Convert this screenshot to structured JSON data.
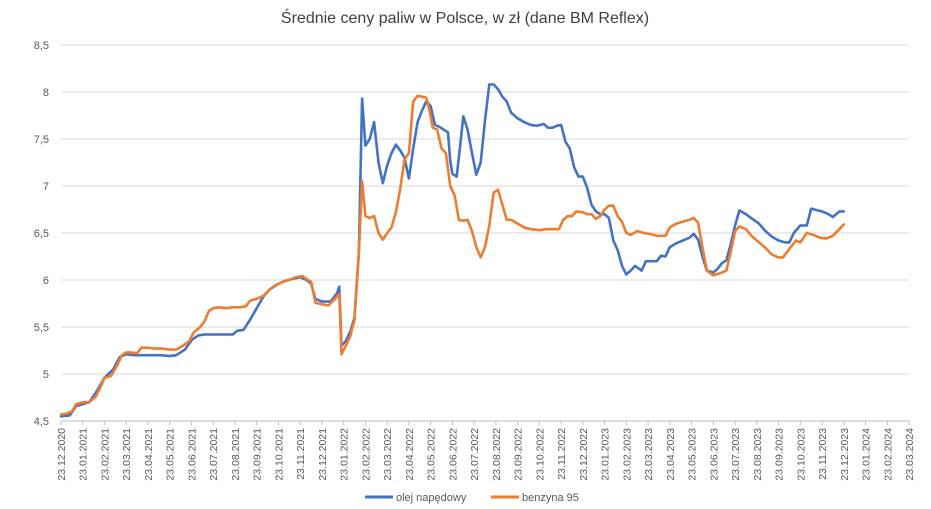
{
  "chart_data": {
    "type": "line",
    "title": "Średnie ceny paliw w Polsce, w zł (dane BM Reflex)",
    "xlabel": "",
    "ylabel": "",
    "ylim": [
      4.5,
      8.5
    ],
    "yticks": [
      "4,5",
      "5",
      "5,5",
      "6",
      "6,5",
      "7",
      "7,5",
      "8",
      "8,5"
    ],
    "grid": true,
    "legend": "bottom",
    "categories": [
      "23.12.2020",
      "23.01.2021",
      "23.02.2021",
      "23.03.2021",
      "23.04.2021",
      "23.05.2021",
      "23.06.2021",
      "23.07.2021",
      "23.08.2021",
      "23.09.2021",
      "23.10.2021",
      "23.11.2021",
      "23.12.2021",
      "23.01.2022",
      "23.02.2022",
      "23.03.2022",
      "23.04.2022",
      "23.05.2022",
      "23.06.2022",
      "23.07.2022",
      "23.08.2022",
      "23.09.2022",
      "23.10.2022",
      "23.11.2022",
      "23.12.2022",
      "23.01.2023",
      "23.02.2023",
      "23.03.2023",
      "23.04.2023",
      "23.05.2023",
      "23.06.2023",
      "23.07.2023",
      "23.08.2023",
      "23.09.2023",
      "23.10.2023",
      "23.11.2023",
      "23.12.2023",
      "23.01.2024",
      "23.02.2024",
      "23.03.2024"
    ],
    "series": [
      {
        "name": "olej napędowy",
        "color": "#4472C4",
        "points": [
          [
            0,
            4.55
          ],
          [
            0.4,
            4.56
          ],
          [
            0.7,
            4.66
          ],
          [
            1.0,
            4.68
          ],
          [
            1.3,
            4.7
          ],
          [
            1.6,
            4.8
          ],
          [
            2.0,
            4.96
          ],
          [
            2.4,
            5.05
          ],
          [
            2.7,
            5.18
          ],
          [
            3.0,
            5.21
          ],
          [
            3.4,
            5.2
          ],
          [
            3.8,
            5.2
          ],
          [
            4.2,
            5.2
          ],
          [
            4.6,
            5.2
          ],
          [
            5.0,
            5.19
          ],
          [
            5.3,
            5.2
          ],
          [
            5.7,
            5.26
          ],
          [
            6.0,
            5.36
          ],
          [
            6.3,
            5.41
          ],
          [
            6.6,
            5.42
          ],
          [
            7.0,
            5.42
          ],
          [
            7.5,
            5.42
          ],
          [
            7.9,
            5.42
          ],
          [
            8.1,
            5.46
          ],
          [
            8.4,
            5.47
          ],
          [
            8.7,
            5.58
          ],
          [
            9.0,
            5.7
          ],
          [
            9.3,
            5.82
          ],
          [
            9.6,
            5.9
          ],
          [
            10.0,
            5.96
          ],
          [
            10.3,
            5.99
          ],
          [
            10.6,
            6.01
          ],
          [
            11.0,
            6.03
          ],
          [
            11.3,
            6.0
          ],
          [
            11.5,
            5.96
          ],
          [
            11.7,
            5.8
          ],
          [
            12.0,
            5.77
          ],
          [
            12.4,
            5.77
          ],
          [
            12.7,
            5.86
          ],
          [
            12.8,
            5.93
          ],
          [
            12.9,
            5.3
          ],
          [
            13.1,
            5.35
          ],
          [
            13.3,
            5.45
          ],
          [
            13.5,
            5.6
          ],
          [
            13.7,
            6.3
          ],
          [
            13.85,
            7.93
          ],
          [
            14.0,
            7.43
          ],
          [
            14.2,
            7.5
          ],
          [
            14.4,
            7.68
          ],
          [
            14.6,
            7.25
          ],
          [
            14.8,
            7.03
          ],
          [
            15.0,
            7.22
          ],
          [
            15.2,
            7.35
          ],
          [
            15.4,
            7.44
          ],
          [
            15.6,
            7.38
          ],
          [
            15.8,
            7.3
          ],
          [
            16.0,
            7.08
          ],
          [
            16.2,
            7.4
          ],
          [
            16.4,
            7.68
          ],
          [
            16.6,
            7.8
          ],
          [
            16.8,
            7.9
          ],
          [
            17.0,
            7.85
          ],
          [
            17.2,
            7.65
          ],
          [
            17.4,
            7.63
          ],
          [
            17.6,
            7.6
          ],
          [
            17.8,
            7.57
          ],
          [
            17.9,
            7.27
          ],
          [
            18.0,
            7.13
          ],
          [
            18.2,
            7.1
          ],
          [
            18.4,
            7.52
          ],
          [
            18.5,
            7.74
          ],
          [
            18.7,
            7.6
          ],
          [
            18.9,
            7.35
          ],
          [
            19.1,
            7.12
          ],
          [
            19.3,
            7.25
          ],
          [
            19.5,
            7.7
          ],
          [
            19.7,
            8.08
          ],
          [
            19.9,
            8.08
          ],
          [
            20.1,
            8.03
          ],
          [
            20.3,
            7.95
          ],
          [
            20.5,
            7.9
          ],
          [
            20.7,
            7.78
          ],
          [
            21.0,
            7.72
          ],
          [
            21.3,
            7.68
          ],
          [
            21.6,
            7.65
          ],
          [
            21.9,
            7.64
          ],
          [
            22.2,
            7.66
          ],
          [
            22.4,
            7.62
          ],
          [
            22.6,
            7.62
          ],
          [
            22.8,
            7.64
          ],
          [
            23.0,
            7.65
          ],
          [
            23.2,
            7.47
          ],
          [
            23.4,
            7.4
          ],
          [
            23.6,
            7.2
          ],
          [
            23.8,
            7.1
          ],
          [
            24.0,
            7.1
          ],
          [
            24.2,
            6.98
          ],
          [
            24.4,
            6.8
          ],
          [
            24.6,
            6.73
          ],
          [
            24.8,
            6.7
          ],
          [
            25.0,
            6.7
          ],
          [
            25.2,
            6.66
          ],
          [
            25.4,
            6.42
          ],
          [
            25.6,
            6.32
          ],
          [
            25.8,
            6.15
          ],
          [
            26.0,
            6.06
          ],
          [
            26.2,
            6.1
          ],
          [
            26.4,
            6.15
          ],
          [
            26.7,
            6.1
          ],
          [
            26.9,
            6.2
          ],
          [
            27.2,
            6.2
          ],
          [
            27.4,
            6.2
          ],
          [
            27.6,
            6.26
          ],
          [
            27.8,
            6.25
          ],
          [
            28.0,
            6.35
          ],
          [
            28.3,
            6.39
          ],
          [
            28.6,
            6.42
          ],
          [
            28.9,
            6.45
          ],
          [
            29.1,
            6.49
          ],
          [
            29.3,
            6.43
          ],
          [
            29.5,
            6.25
          ],
          [
            29.7,
            6.1
          ],
          [
            30.0,
            6.08
          ],
          [
            30.2,
            6.12
          ],
          [
            30.4,
            6.18
          ],
          [
            30.6,
            6.21
          ],
          [
            30.8,
            6.38
          ],
          [
            31.0,
            6.58
          ],
          [
            31.2,
            6.74
          ],
          [
            31.5,
            6.7
          ],
          [
            31.8,
            6.65
          ],
          [
            32.1,
            6.6
          ],
          [
            32.4,
            6.52
          ],
          [
            32.7,
            6.46
          ],
          [
            33.0,
            6.42
          ],
          [
            33.3,
            6.4
          ],
          [
            33.5,
            6.4
          ],
          [
            33.7,
            6.5
          ],
          [
            34.0,
            6.58
          ],
          [
            34.3,
            6.58
          ],
          [
            34.5,
            6.76
          ],
          [
            34.8,
            6.74
          ],
          [
            35.0,
            6.73
          ],
          [
            35.3,
            6.7
          ],
          [
            35.5,
            6.67
          ],
          [
            35.8,
            6.73
          ],
          [
            36.0,
            6.73
          ]
        ]
      },
      {
        "name": "benzyna 95",
        "color": "#ED7D31",
        "points": [
          [
            0,
            4.57
          ],
          [
            0.3,
            4.58
          ],
          [
            0.5,
            4.6
          ],
          [
            0.7,
            4.68
          ],
          [
            1.0,
            4.7
          ],
          [
            1.3,
            4.7
          ],
          [
            1.6,
            4.76
          ],
          [
            1.8,
            4.85
          ],
          [
            2.0,
            4.96
          ],
          [
            2.3,
            4.98
          ],
          [
            2.6,
            5.1
          ],
          [
            2.8,
            5.2
          ],
          [
            3.0,
            5.23
          ],
          [
            3.2,
            5.23
          ],
          [
            3.5,
            5.22
          ],
          [
            3.7,
            5.28
          ],
          [
            4.0,
            5.28
          ],
          [
            4.3,
            5.27
          ],
          [
            4.6,
            5.27
          ],
          [
            5.0,
            5.26
          ],
          [
            5.3,
            5.26
          ],
          [
            5.6,
            5.3
          ],
          [
            5.9,
            5.35
          ],
          [
            6.1,
            5.44
          ],
          [
            6.4,
            5.5
          ],
          [
            6.6,
            5.56
          ],
          [
            6.8,
            5.67
          ],
          [
            7.0,
            5.7
          ],
          [
            7.3,
            5.71
          ],
          [
            7.6,
            5.7
          ],
          [
            7.9,
            5.71
          ],
          [
            8.2,
            5.71
          ],
          [
            8.5,
            5.72
          ],
          [
            8.7,
            5.78
          ],
          [
            9.0,
            5.8
          ],
          [
            9.3,
            5.83
          ],
          [
            9.6,
            5.9
          ],
          [
            9.9,
            5.95
          ],
          [
            10.2,
            5.98
          ],
          [
            10.5,
            6.0
          ],
          [
            10.8,
            6.03
          ],
          [
            11.1,
            6.04
          ],
          [
            11.3,
            6.01
          ],
          [
            11.5,
            5.98
          ],
          [
            11.7,
            5.76
          ],
          [
            12.0,
            5.74
          ],
          [
            12.3,
            5.73
          ],
          [
            12.6,
            5.8
          ],
          [
            12.8,
            5.85
          ],
          [
            12.9,
            5.21
          ],
          [
            13.1,
            5.3
          ],
          [
            13.3,
            5.4
          ],
          [
            13.5,
            5.58
          ],
          [
            13.7,
            6.3
          ],
          [
            13.85,
            7.05
          ],
          [
            14.0,
            6.68
          ],
          [
            14.2,
            6.66
          ],
          [
            14.4,
            6.68
          ],
          [
            14.6,
            6.5
          ],
          [
            14.8,
            6.43
          ],
          [
            15.0,
            6.5
          ],
          [
            15.2,
            6.56
          ],
          [
            15.4,
            6.72
          ],
          [
            15.6,
            6.97
          ],
          [
            15.8,
            7.28
          ],
          [
            16.0,
            7.35
          ],
          [
            16.2,
            7.9
          ],
          [
            16.4,
            7.96
          ],
          [
            16.6,
            7.95
          ],
          [
            16.8,
            7.94
          ],
          [
            16.95,
            7.8
          ],
          [
            17.1,
            7.62
          ],
          [
            17.3,
            7.6
          ],
          [
            17.5,
            7.4
          ],
          [
            17.7,
            7.35
          ],
          [
            17.9,
            7.0
          ],
          [
            18.1,
            6.9
          ],
          [
            18.3,
            6.64
          ],
          [
            18.5,
            6.63
          ],
          [
            18.7,
            6.64
          ],
          [
            18.9,
            6.52
          ],
          [
            19.1,
            6.35
          ],
          [
            19.3,
            6.24
          ],
          [
            19.5,
            6.35
          ],
          [
            19.7,
            6.58
          ],
          [
            19.9,
            6.93
          ],
          [
            20.1,
            6.96
          ],
          [
            20.3,
            6.8
          ],
          [
            20.5,
            6.64
          ],
          [
            20.7,
            6.64
          ],
          [
            21.0,
            6.6
          ],
          [
            21.3,
            6.56
          ],
          [
            21.6,
            6.54
          ],
          [
            22.0,
            6.53
          ],
          [
            22.3,
            6.54
          ],
          [
            22.6,
            6.54
          ],
          [
            22.9,
            6.54
          ],
          [
            23.1,
            6.64
          ],
          [
            23.3,
            6.68
          ],
          [
            23.5,
            6.68
          ],
          [
            23.7,
            6.73
          ],
          [
            24.0,
            6.72
          ],
          [
            24.2,
            6.7
          ],
          [
            24.4,
            6.7
          ],
          [
            24.6,
            6.65
          ],
          [
            24.8,
            6.68
          ],
          [
            25.0,
            6.75
          ],
          [
            25.2,
            6.79
          ],
          [
            25.4,
            6.79
          ],
          [
            25.6,
            6.68
          ],
          [
            25.8,
            6.62
          ],
          [
            26.0,
            6.5
          ],
          [
            26.2,
            6.48
          ],
          [
            26.5,
            6.52
          ],
          [
            26.8,
            6.5
          ],
          [
            27.1,
            6.49
          ],
          [
            27.4,
            6.47
          ],
          [
            27.6,
            6.47
          ],
          [
            27.8,
            6.47
          ],
          [
            28.0,
            6.56
          ],
          [
            28.3,
            6.6
          ],
          [
            28.6,
            6.62
          ],
          [
            28.9,
            6.64
          ],
          [
            29.1,
            6.66
          ],
          [
            29.3,
            6.61
          ],
          [
            29.5,
            6.35
          ],
          [
            29.7,
            6.1
          ],
          [
            30.0,
            6.05
          ],
          [
            30.3,
            6.07
          ],
          [
            30.6,
            6.1
          ],
          [
            30.8,
            6.3
          ],
          [
            31.0,
            6.52
          ],
          [
            31.2,
            6.57
          ],
          [
            31.5,
            6.54
          ],
          [
            31.8,
            6.46
          ],
          [
            32.1,
            6.4
          ],
          [
            32.4,
            6.34
          ],
          [
            32.7,
            6.27
          ],
          [
            33.0,
            6.24
          ],
          [
            33.2,
            6.24
          ],
          [
            33.4,
            6.3
          ],
          [
            33.6,
            6.36
          ],
          [
            33.8,
            6.42
          ],
          [
            34.0,
            6.4
          ],
          [
            34.3,
            6.5
          ],
          [
            34.6,
            6.48
          ],
          [
            34.9,
            6.45
          ],
          [
            35.2,
            6.44
          ],
          [
            35.5,
            6.47
          ],
          [
            35.8,
            6.54
          ],
          [
            36.0,
            6.59
          ]
        ]
      }
    ]
  }
}
